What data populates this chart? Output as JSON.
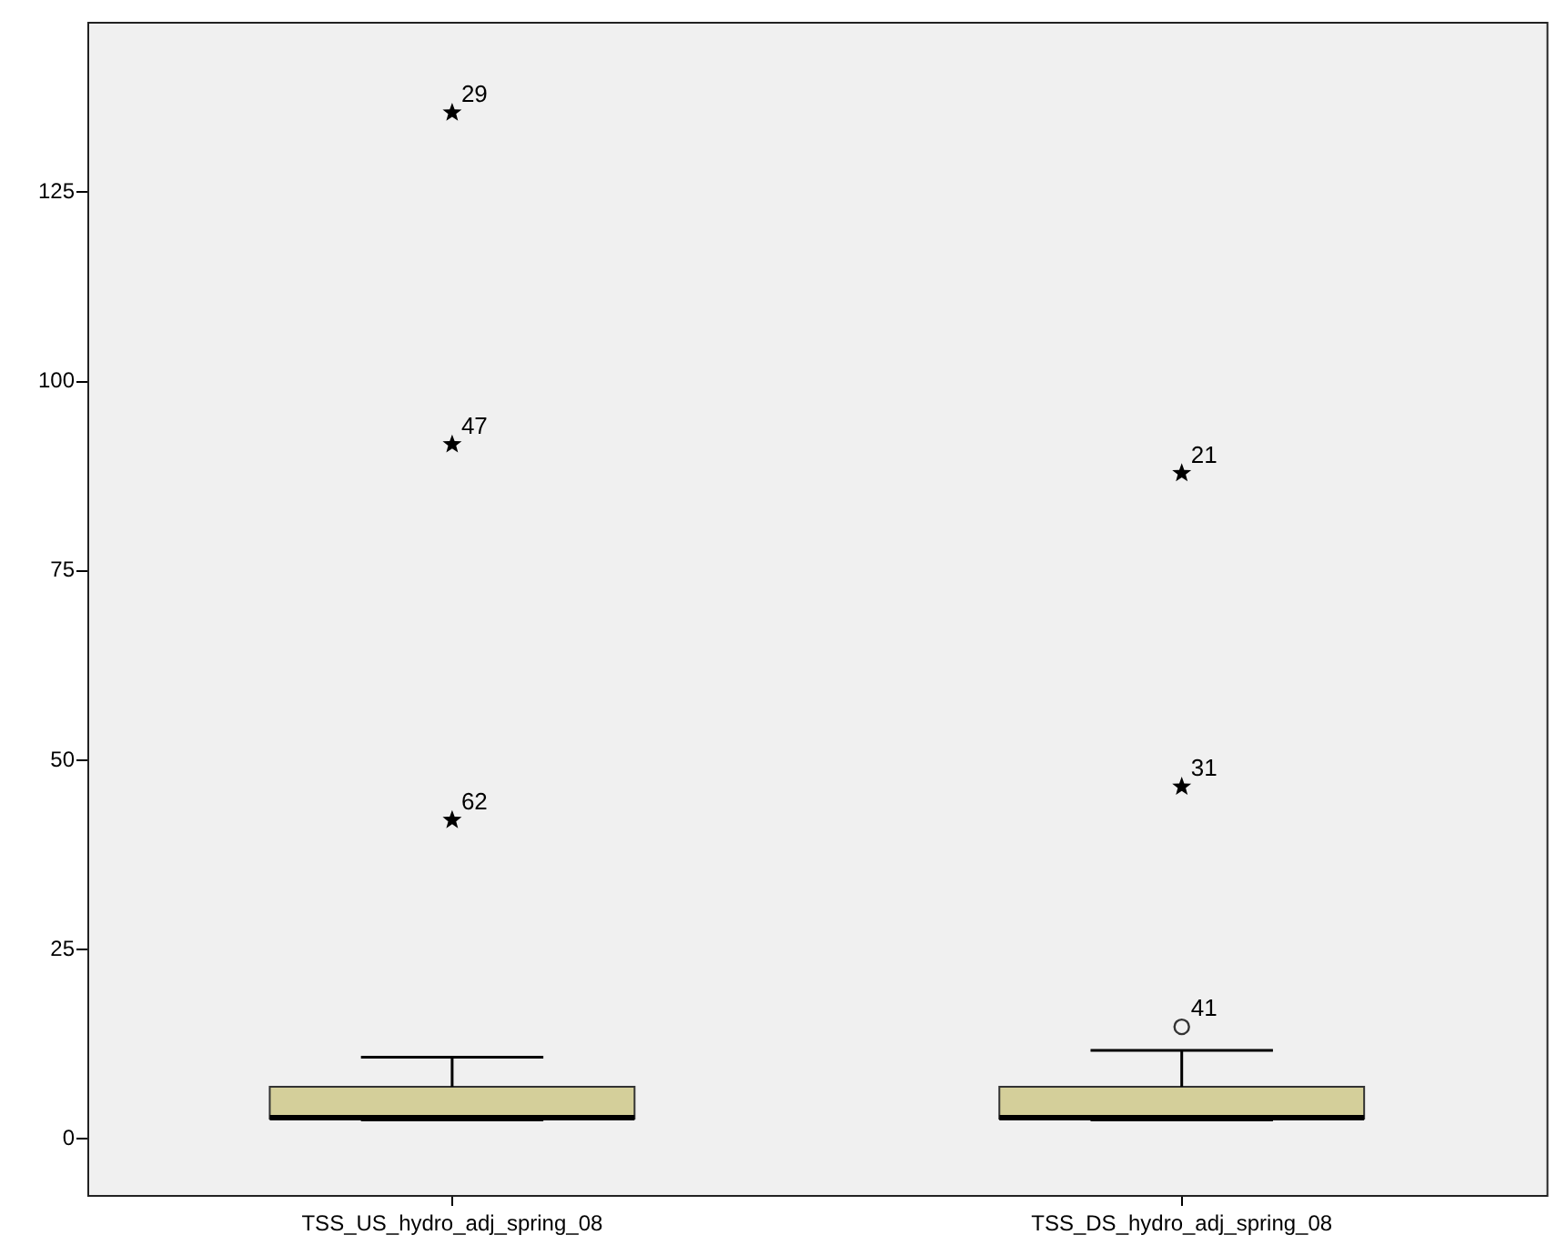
{
  "chart_data": {
    "type": "box",
    "categories": [
      "TSS_US_hydro_adj_spring_08",
      "TSS_DS_hydro_adj_spring_08"
    ],
    "ylim": [
      -7.4,
      147.5
    ],
    "yticks": [
      0,
      25,
      50,
      75,
      100,
      125
    ],
    "grid": false,
    "legend": false,
    "series": [
      {
        "type": "box",
        "color": "#d4cf9a",
        "boxes": [
          {
            "low": 2.5,
            "q1": 2.7,
            "median": 2.8,
            "q3": 6.9,
            "high": 10.8
          },
          {
            "low": 2.5,
            "q1": 2.7,
            "median": 2.8,
            "q3": 6.9,
            "high": 11.7
          }
        ]
      },
      {
        "type": "scatter",
        "marker": "star",
        "color": "#000000",
        "x": [
          "TSS_US_hydro_adj_spring_08",
          "TSS_US_hydro_adj_spring_08",
          "TSS_US_hydro_adj_spring_08",
          "TSS_DS_hydro_adj_spring_08",
          "TSS_DS_hydro_adj_spring_08"
        ],
        "values": [
          135.5,
          91.7,
          42.1,
          87.9,
          46.5
        ]
      },
      {
        "type": "scatter",
        "marker": "circle",
        "color": "#333333",
        "x": [
          "TSS_DS_hydro_adj_spring_08"
        ],
        "values": [
          14.8
        ]
      }
    ],
    "annotations": [
      {
        "text": "29",
        "x": "TSS_US_hydro_adj_spring_08",
        "y": 135.5
      },
      {
        "text": "47",
        "x": "TSS_US_hydro_adj_spring_08",
        "y": 91.7
      },
      {
        "text": "62",
        "x": "TSS_US_hydro_adj_spring_08",
        "y": 42.1
      },
      {
        "text": "21",
        "x": "TSS_DS_hydro_adj_spring_08",
        "y": 87.9
      },
      {
        "text": "31",
        "x": "TSS_DS_hydro_adj_spring_08",
        "y": 46.5
      },
      {
        "text": "41",
        "x": "TSS_DS_hydro_adj_spring_08",
        "y": 14.8
      }
    ]
  }
}
